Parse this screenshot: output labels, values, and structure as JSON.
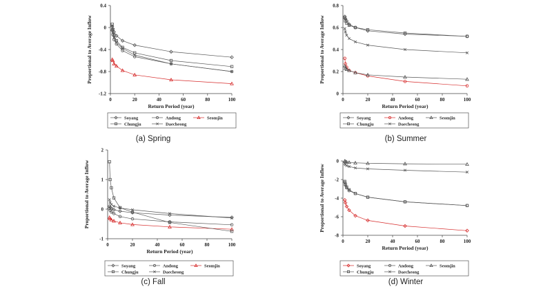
{
  "figure": {
    "panels": [
      {
        "caption": "(a) Spring"
      },
      {
        "caption": "(b) Summer"
      },
      {
        "caption": "(c) Fall"
      },
      {
        "caption": "(d) Winter"
      }
    ]
  },
  "chart_data": [
    {
      "type": "line",
      "xlabel": "Return Period (year)",
      "ylabel": "Proportional to Average Inflow",
      "xlim": [
        0,
        100
      ],
      "ylim": [
        -1.2,
        0.4
      ],
      "xticks": [
        0,
        20,
        40,
        60,
        80,
        100
      ],
      "xtick_labels": [
        "0",
        "20",
        "40",
        "60",
        "80",
        "100"
      ],
      "yticks": [
        0.4,
        0,
        -0.4,
        -0.8,
        -1.2
      ],
      "ytick_labels": [
        "0.4",
        "0",
        "-0.4",
        "-0.8",
        "-1.2"
      ],
      "legend_placement": "bottom",
      "x": [
        1.5,
        2,
        3,
        5,
        10,
        20,
        50,
        100
      ],
      "series": [
        {
          "name": "Soyang",
          "marker": "diamond",
          "color": "#555555",
          "values": [
            0.02,
            -0.02,
            -0.08,
            -0.15,
            -0.24,
            -0.32,
            -0.44,
            -0.54
          ]
        },
        {
          "name": "Andong",
          "marker": "circle",
          "color": "#555555",
          "values": [
            -0.05,
            -0.13,
            -0.22,
            -0.3,
            -0.42,
            -0.53,
            -0.66,
            -0.8
          ]
        },
        {
          "name": "Seomjin",
          "marker": "triangle",
          "color": "#d62a2a",
          "values": [
            -0.58,
            -0.6,
            -0.66,
            -0.7,
            -0.78,
            -0.86,
            -0.95,
            -1.02
          ]
        },
        {
          "name": "Chungju",
          "marker": "square",
          "color": "#555555",
          "values": [
            0.06,
            -0.04,
            -0.14,
            -0.24,
            -0.36,
            -0.46,
            -0.6,
            -0.71
          ]
        },
        {
          "name": "Daecheong",
          "marker": "x",
          "color": "#555555",
          "values": [
            0.03,
            -0.08,
            -0.18,
            -0.27,
            -0.38,
            -0.5,
            -0.66,
            -0.8
          ]
        }
      ]
    },
    {
      "type": "line",
      "xlabel": "Return Period (year)",
      "ylabel": "Proportional to Average Inflow",
      "xlim": [
        0,
        100
      ],
      "ylim": [
        0,
        0.8
      ],
      "xticks": [
        0,
        20,
        40,
        60,
        80,
        100
      ],
      "xtick_labels": [
        "0",
        "20",
        "40",
        "60",
        "80",
        "100"
      ],
      "yticks": [
        0.8,
        0.6,
        0.4,
        0.2,
        0
      ],
      "ytick_labels": [
        "0.8",
        "0.6",
        "0.4",
        "0.2",
        "0"
      ],
      "legend_placement": "bottom",
      "x": [
        1.5,
        2,
        3,
        5,
        10,
        20,
        50,
        100
      ],
      "series": [
        {
          "name": "Soyang",
          "marker": "diamond",
          "color": "#555555",
          "values": [
            0.7,
            0.68,
            0.66,
            0.63,
            0.6,
            0.57,
            0.54,
            0.52
          ]
        },
        {
          "name": "Andong",
          "marker": "circle",
          "color": "#d62a2a",
          "values": [
            0.32,
            0.27,
            0.24,
            0.21,
            0.19,
            0.16,
            0.11,
            0.07
          ]
        },
        {
          "name": "Seomjin",
          "marker": "triangle",
          "color": "#555555",
          "values": [
            0.25,
            0.23,
            0.22,
            0.21,
            0.19,
            0.17,
            0.15,
            0.13
          ]
        },
        {
          "name": "Chungju",
          "marker": "square",
          "color": "#555555",
          "values": [
            0.69,
            0.66,
            0.64,
            0.62,
            0.6,
            0.58,
            0.55,
            0.52
          ]
        },
        {
          "name": "Daecheong",
          "marker": "x",
          "color": "#555555",
          "values": [
            0.59,
            0.56,
            0.53,
            0.5,
            0.47,
            0.44,
            0.4,
            0.37
          ]
        }
      ]
    },
    {
      "type": "line",
      "xlabel": "Return Period (year)",
      "ylabel": "Proportional to Average Inflow",
      "xlim": [
        0,
        100
      ],
      "ylim": [
        -1,
        2
      ],
      "xticks": [
        0,
        20,
        40,
        60,
        80,
        100
      ],
      "xtick_labels": [
        "0",
        "20",
        "40",
        "60",
        "80",
        "100"
      ],
      "yticks": [
        2,
        1,
        0,
        -1
      ],
      "ytick_labels": [
        "2",
        "1",
        "0",
        "-1"
      ],
      "legend_placement": "bottom",
      "x": [
        1.5,
        2,
        3,
        5,
        10,
        20,
        50,
        100
      ],
      "series": [
        {
          "name": "Soyang",
          "marker": "diamond",
          "color": "#555555",
          "values": [
            0.1,
            0.06,
            0.02,
            -0.02,
            -0.07,
            -0.12,
            -0.2,
            -0.28
          ]
        },
        {
          "name": "Andong",
          "marker": "circle",
          "color": "#555555",
          "values": [
            0.02,
            -0.04,
            -0.1,
            -0.15,
            -0.25,
            -0.33,
            -0.43,
            -0.53
          ]
        },
        {
          "name": "Seomjin",
          "marker": "triangle",
          "color": "#d62a2a",
          "values": [
            -0.28,
            -0.32,
            -0.36,
            -0.4,
            -0.46,
            -0.52,
            -0.6,
            -0.68
          ]
        },
        {
          "name": "Chungju",
          "marker": "square",
          "color": "#555555",
          "values": [
            1.6,
            1.0,
            0.72,
            0.38,
            0.05,
            -0.1,
            -0.45,
            -0.75
          ]
        },
        {
          "name": "Daecheong",
          "marker": "x",
          "color": "#555555",
          "values": [
            0.32,
            0.22,
            0.16,
            0.1,
            0.04,
            -0.02,
            -0.15,
            -0.3
          ]
        }
      ]
    },
    {
      "type": "line",
      "xlabel": "Return Period (year)",
      "ylabel": "Proportional to Average Inflow",
      "xlim": [
        0,
        100
      ],
      "ylim": [
        -8,
        0
      ],
      "xticks": [
        0,
        20,
        40,
        60,
        80,
        100
      ],
      "xtick_labels": [
        "0",
        "20",
        "40",
        "60",
        "80",
        "100"
      ],
      "yticks": [
        0,
        -2,
        -4,
        -6,
        -8
      ],
      "ytick_labels": [
        "0",
        "-2",
        "-4",
        "-6",
        "-8"
      ],
      "legend_placement": "bottom",
      "x": [
        1.5,
        2,
        3,
        5,
        10,
        20,
        50,
        100
      ],
      "series": [
        {
          "name": "Soyang",
          "marker": "diamond",
          "color": "#d62a2a",
          "values": [
            -4.2,
            -4.5,
            -4.9,
            -5.3,
            -5.9,
            -6.4,
            -7.0,
            -7.5
          ]
        },
        {
          "name": "Andong",
          "marker": "circle",
          "color": "#555555",
          "values": [
            -2.3,
            -2.6,
            -2.9,
            -3.2,
            -3.5,
            -3.9,
            -4.4,
            -4.8
          ]
        },
        {
          "name": "Seomjin",
          "marker": "triangle",
          "color": "#555555",
          "values": [
            0,
            -0.05,
            -0.1,
            -0.15,
            -0.2,
            -0.25,
            -0.3,
            -0.35
          ]
        },
        {
          "name": "Chungju",
          "marker": "square",
          "color": "#555555",
          "values": [
            -2.2,
            -2.5,
            -2.8,
            -3.1,
            -3.5,
            -3.9,
            -4.4,
            -4.8
          ]
        },
        {
          "name": "Daecheong",
          "marker": "x",
          "color": "#555555",
          "values": [
            -0.3,
            -0.4,
            -0.5,
            -0.6,
            -0.75,
            -0.85,
            -1.0,
            -1.2
          ]
        }
      ]
    }
  ]
}
